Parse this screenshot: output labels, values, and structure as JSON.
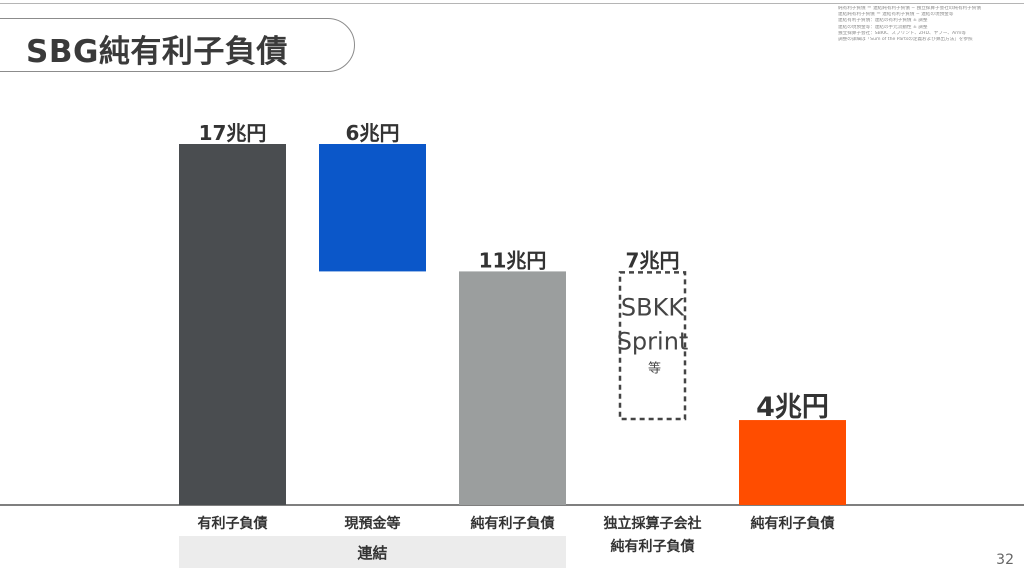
{
  "slide": {
    "title": "SBG純有利子負債",
    "page_number": "32",
    "notes": [
      "純有利子負債 ＝ 連結純有利子負債 − 独立採算子会社の純有利子負債",
      "連結純有利子負債 ＝ 連結有利子負債 − 連結の現預金等",
      "連結有利子負債：連結の有利子負債 ± 調整",
      "連結の現預金等：連結の手元流動性 ± 調整",
      "独立採算子会社：SBKK、スプリント、ZHD、ヤフー、Arm等",
      "調整の詳細は「Sum of the Partsの定義および算出方法」を参照"
    ],
    "group_bracket_label": "連結"
  },
  "chart_data": {
    "type": "bar",
    "variant": "waterfall",
    "unit": "兆円",
    "ylim": [
      0,
      17
    ],
    "grid": false,
    "legend": "none",
    "bars": [
      {
        "category": "有利子負債",
        "value_label": "17兆円",
        "base": 0,
        "top": 17,
        "color": "#4a4d50",
        "style": "solid"
      },
      {
        "category": "現預金等",
        "value_label": "6兆円",
        "base": 11,
        "top": 17,
        "color": "#0b57c9",
        "style": "solid"
      },
      {
        "category": "純有利子負債",
        "value_label": "11兆円",
        "base": 0,
        "top": 11,
        "color": "#9b9e9e",
        "style": "solid"
      },
      {
        "category": "独立採算子会社\n純有利子負債",
        "value_label": "7兆円",
        "base": 4,
        "top": 11,
        "color": "#444444",
        "style": "dashed",
        "inner_label": [
          "SBKK",
          "Sprint",
          "等"
        ]
      },
      {
        "category": "純有利子負債",
        "value_label": "4兆円",
        "base": 0,
        "top": 4,
        "color": "#ff4d00",
        "style": "solid",
        "emphasis": true
      }
    ]
  }
}
